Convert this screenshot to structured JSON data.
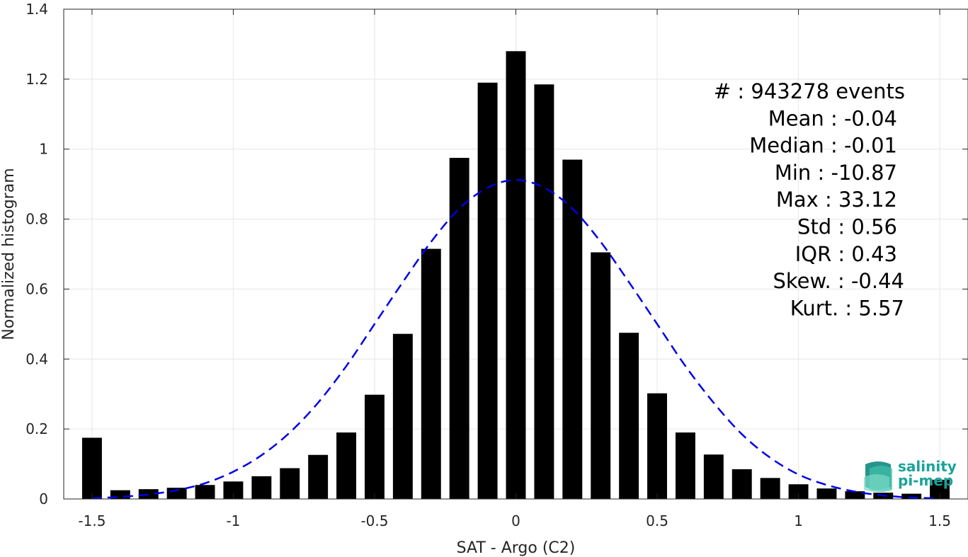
{
  "chart_data": {
    "type": "bar",
    "xlabel": "SAT - Argo (C2)",
    "ylabel": "Normalized histogram",
    "xlim": [
      -1.6,
      1.6
    ],
    "ylim": [
      0,
      1.4
    ],
    "xticks": [
      -1.5,
      -1,
      -0.5,
      0,
      0.5,
      1,
      1.5
    ],
    "xtick_labels": [
      "-1.5",
      "-1",
      "-0.5",
      "0",
      "0.5",
      "1",
      "1.5"
    ],
    "yticks": [
      0,
      0.2,
      0.4,
      0.6,
      0.8,
      1,
      1.2,
      1.4
    ],
    "ytick_labels": [
      "0",
      "0.2",
      "0.4",
      "0.6",
      "0.8",
      "1",
      "1.2",
      "1.4"
    ],
    "grid": true,
    "bar_color": "#000000",
    "bar_width": 0.07,
    "x": [
      -1.5,
      -1.4,
      -1.3,
      -1.2,
      -1.1,
      -1.0,
      -0.9,
      -0.8,
      -0.7,
      -0.6,
      -0.5,
      -0.4,
      -0.3,
      -0.2,
      -0.1,
      0.0,
      0.1,
      0.2,
      0.3,
      0.4,
      0.5,
      0.6,
      0.7,
      0.8,
      0.9,
      1.0,
      1.1,
      1.2,
      1.3,
      1.4,
      1.5
    ],
    "values": [
      0.175,
      0.025,
      0.028,
      0.032,
      0.04,
      0.05,
      0.065,
      0.088,
      0.126,
      0.19,
      0.298,
      0.472,
      0.715,
      0.975,
      1.19,
      1.28,
      1.185,
      0.97,
      0.705,
      0.475,
      0.302,
      0.19,
      0.127,
      0.085,
      0.06,
      0.042,
      0.03,
      0.022,
      0.018,
      0.015,
      0.055
    ],
    "fit_curve": {
      "style": "dashed",
      "color": "#0000e6",
      "x": [
        -1.5,
        -1.4,
        -1.3,
        -1.2,
        -1.1,
        -1.0,
        -0.9,
        -0.8,
        -0.7,
        -0.6,
        -0.5,
        -0.4,
        -0.3,
        -0.2,
        -0.1,
        0.0,
        0.1,
        0.2,
        0.3,
        0.4,
        0.5,
        0.6,
        0.7,
        0.8,
        0.9,
        1.0,
        1.1,
        1.2,
        1.3,
        1.4,
        1.5
      ],
      "y": [
        0.002,
        0.006,
        0.013,
        0.025,
        0.045,
        0.078,
        0.125,
        0.19,
        0.275,
        0.38,
        0.5,
        0.62,
        0.735,
        0.83,
        0.89,
        0.912,
        0.89,
        0.83,
        0.735,
        0.62,
        0.5,
        0.38,
        0.275,
        0.185,
        0.118,
        0.07,
        0.04,
        0.021,
        0.01,
        0.004,
        0.002
      ]
    },
    "stats": [
      "#  : 943278 events",
      "Mean : -0.04",
      "Median : -0.01",
      "Min : -10.87",
      "Max : 33.12",
      "Std : 0.56",
      "IQR : 0.43",
      "Skew. : -0.44",
      "Kurt. : 5.57"
    ]
  },
  "logo": {
    "line1": "salinity",
    "line2": "pi-mep",
    "color": "#1aa39a"
  }
}
